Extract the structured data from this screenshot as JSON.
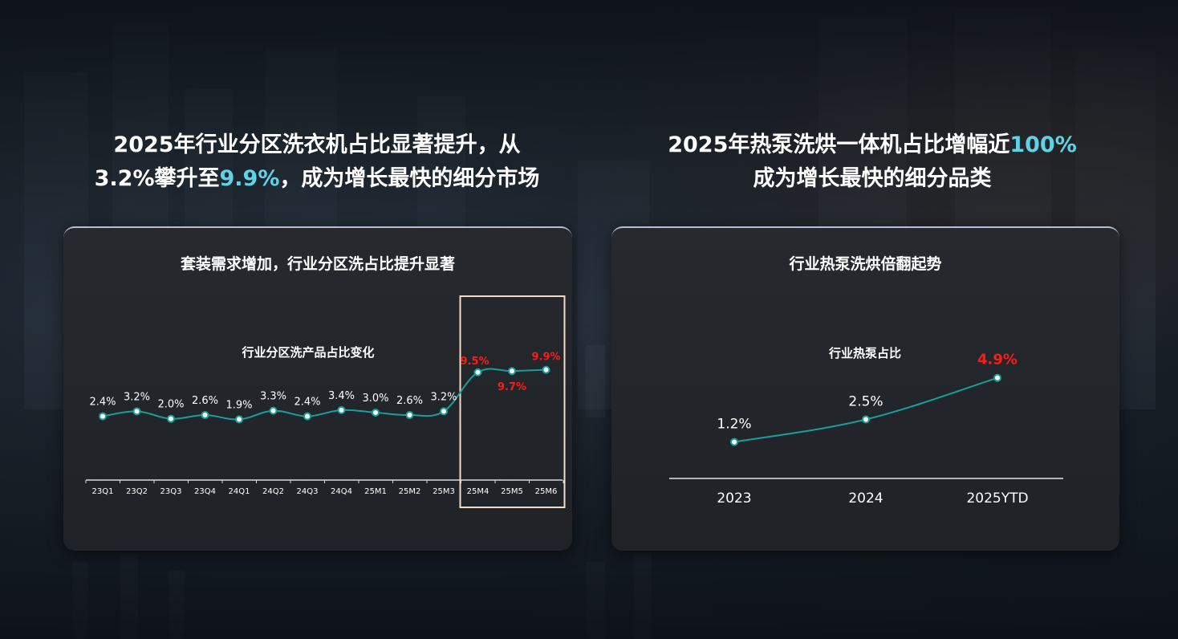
{
  "left_panel": {
    "headline_line1": "2025年行业分区洗衣机占比显著提升，从",
    "headline_line2_a": "3.2%攀升至",
    "headline_line2_highlight": "9.9%",
    "headline_line2_b": "，成为增长最快的细分市场",
    "card_title": "套装需求增加，行业分区洗占比提升显著"
  },
  "right_panel": {
    "headline_line1_a": "2025年热泵洗烘一体机占比增幅近",
    "headline_line1_highlight": "100%",
    "headline_line2": "成为增长最快的细分品类",
    "card_title": "行业热泵洗烘倍翻起势"
  },
  "colors": {
    "line": "#1a9e9a",
    "highlight_label": "#ff1a1a",
    "headline_highlight": "#5fd3e6"
  },
  "chart_data": [
    {
      "type": "line",
      "title": "行业分区洗产品占比变化",
      "categories": [
        "23Q1",
        "23Q2",
        "23Q3",
        "23Q4",
        "24Q1",
        "24Q2",
        "24Q3",
        "24Q4",
        "25M1",
        "25M2",
        "25M3",
        "25M4",
        "25M5",
        "25M6"
      ],
      "series": [
        {
          "values": [
            2.4,
            3.2,
            2.0,
            2.6,
            1.9,
            3.3,
            2.4,
            3.4,
            3.0,
            2.6,
            3.2,
            9.5,
            9.7,
            9.9
          ],
          "labels": [
            "2.4%",
            "3.2%",
            "2.0%",
            "2.6%",
            "1.9%",
            "3.3%",
            "2.4%",
            "3.4%",
            "3.0%",
            "2.6%",
            "3.2%",
            "9.5%",
            "9.7%",
            "9.9%"
          ]
        }
      ],
      "highlighted_categories": [
        "25M4",
        "25M5",
        "25M6"
      ],
      "grid": false
    },
    {
      "type": "line",
      "title": "行业热泵占比",
      "categories": [
        "2023",
        "2024",
        "2025YTD"
      ],
      "series": [
        {
          "values": [
            1.2,
            2.5,
            4.9
          ],
          "labels": [
            "1.2%",
            "2.5%",
            "4.9%"
          ]
        }
      ],
      "highlighted_categories": [
        "2025YTD"
      ],
      "grid": false
    }
  ]
}
